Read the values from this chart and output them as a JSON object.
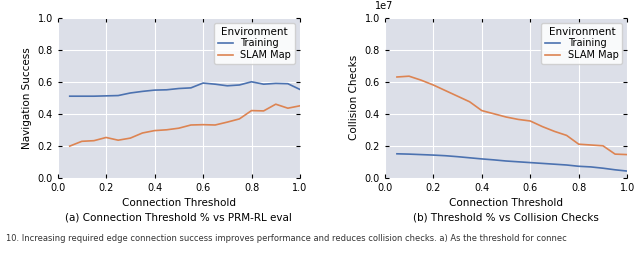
{
  "left": {
    "xlabel": "Connection Threshold",
    "ylabel": "Navigation Success",
    "xlim": [
      0.0,
      1.0
    ],
    "ylim": [
      0.0,
      1.0
    ],
    "yticks": [
      0.0,
      0.2,
      0.4,
      0.6,
      0.8,
      1.0
    ],
    "xticks": [
      0.0,
      0.2,
      0.4,
      0.6,
      0.8,
      1.0
    ],
    "training_x": [
      0.05,
      0.1,
      0.15,
      0.2,
      0.25,
      0.3,
      0.35,
      0.4,
      0.45,
      0.5,
      0.55,
      0.6,
      0.65,
      0.7,
      0.75,
      0.8,
      0.85,
      0.9,
      0.95,
      1.0
    ],
    "training_y": [
      0.51,
      0.51,
      0.51,
      0.512,
      0.514,
      0.53,
      0.54,
      0.548,
      0.55,
      0.558,
      0.562,
      0.592,
      0.585,
      0.575,
      0.58,
      0.6,
      0.585,
      0.59,
      0.588,
      0.552
    ],
    "slam_x": [
      0.05,
      0.1,
      0.15,
      0.2,
      0.25,
      0.3,
      0.35,
      0.4,
      0.45,
      0.5,
      0.55,
      0.6,
      0.65,
      0.7,
      0.75,
      0.8,
      0.85,
      0.9,
      0.95,
      1.0
    ],
    "slam_y": [
      0.198,
      0.228,
      0.232,
      0.252,
      0.235,
      0.248,
      0.28,
      0.295,
      0.3,
      0.31,
      0.33,
      0.332,
      0.33,
      0.348,
      0.368,
      0.42,
      0.418,
      0.46,
      0.435,
      0.45
    ],
    "training_color": "#4C72B0",
    "slam_color": "#DD8452",
    "legend_title": "Environment",
    "legend_labels": [
      "Training",
      "SLAM Map"
    ]
  },
  "right": {
    "xlabel": "Connection Threshold",
    "ylabel": "Collision Checks",
    "xlim": [
      0.0,
      1.0
    ],
    "ylim": [
      0.0,
      10000000.0
    ],
    "yticks": [
      0.0,
      2000000.0,
      4000000.0,
      6000000.0,
      8000000.0,
      10000000.0
    ],
    "xticks": [
      0.0,
      0.2,
      0.4,
      0.6,
      0.8,
      1.0
    ],
    "training_x": [
      0.05,
      0.1,
      0.15,
      0.2,
      0.25,
      0.3,
      0.35,
      0.4,
      0.45,
      0.5,
      0.55,
      0.6,
      0.65,
      0.7,
      0.75,
      0.8,
      0.85,
      0.9,
      0.95,
      1.0
    ],
    "training_y": [
      1500000.0,
      1480000.0,
      1450000.0,
      1420000.0,
      1380000.0,
      1320000.0,
      1250000.0,
      1180000.0,
      1120000.0,
      1050000.0,
      1000000.0,
      950000.0,
      900000.0,
      850000.0,
      800000.0,
      720000.0,
      680000.0,
      600000.0,
      500000.0,
      420000.0
    ],
    "slam_x": [
      0.05,
      0.1,
      0.15,
      0.2,
      0.25,
      0.3,
      0.35,
      0.4,
      0.45,
      0.5,
      0.55,
      0.6,
      0.65,
      0.7,
      0.75,
      0.8,
      0.85,
      0.9,
      0.95,
      1.0
    ],
    "slam_y": [
      6300000.0,
      6350000.0,
      6100000.0,
      5800000.0,
      5450000.0,
      5100000.0,
      4750000.0,
      4200000.0,
      4000000.0,
      3800000.0,
      3650000.0,
      3550000.0,
      3200000.0,
      2900000.0,
      2650000.0,
      2100000.0,
      2050000.0,
      2000000.0,
      1480000.0,
      1450000.0
    ],
    "training_color": "#4C72B0",
    "slam_color": "#DD8452",
    "legend_title": "Environment",
    "legend_labels": [
      "Training",
      "SLAM Map"
    ]
  },
  "caption_a": "(a) Connection Threshold % vs PRM-RL eval",
  "caption_b": "(b) Threshold % vs Collision Checks",
  "fig_text": "10. Increasing required edge connection success improves performance and reduces collision checks. a) As the threshold for connec",
  "bg_color": "#DCDFE8",
  "fig_bg": "#FFFFFF"
}
